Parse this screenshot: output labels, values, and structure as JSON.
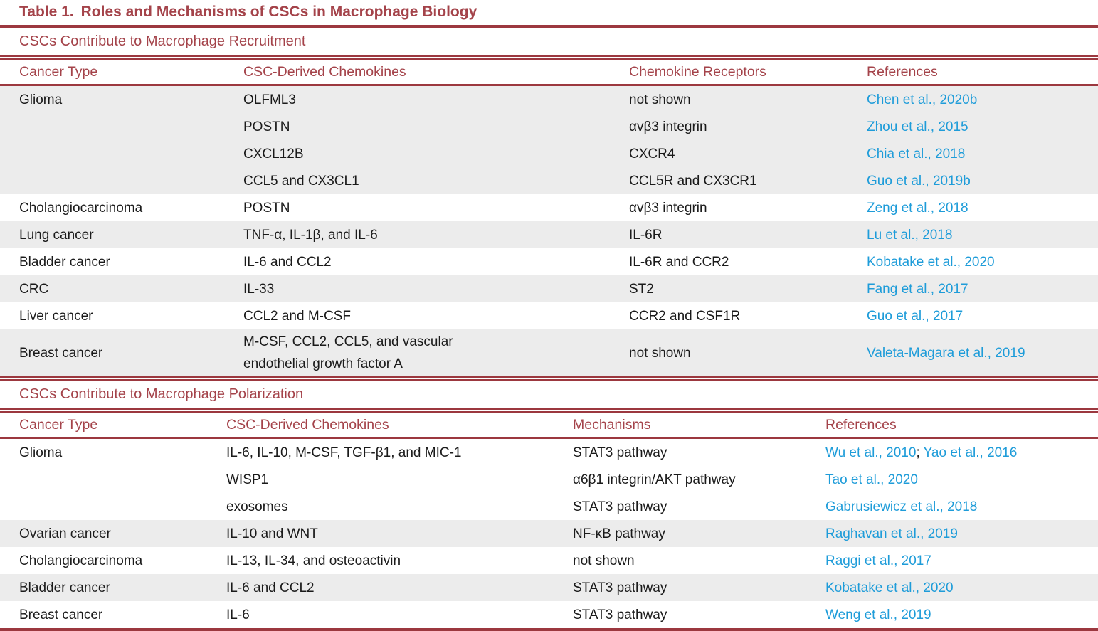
{
  "title": {
    "label": "Table 1.",
    "text": "Roles and Mechanisms of CSCs in Macrophage Biology"
  },
  "colors": {
    "maroon": "#A4434A",
    "link_blue": "#1E9CD9",
    "stripe_gray": "#ECECEC"
  },
  "sections": [
    {
      "header": "CSCs Contribute to Macrophage Recruitment",
      "columns": [
        "Cancer Type",
        "CSC-Derived Chemokines",
        "Chemokine Receptors",
        "References"
      ],
      "rows": [
        {
          "cancer_type": "Glioma",
          "chemokines": "OLFML3",
          "col3": "not shown",
          "references": [
            "Chen et al., 2020b"
          ],
          "shade": "gray"
        },
        {
          "cancer_type": "",
          "chemokines": "POSTN",
          "col3": "αvβ3 integrin",
          "references": [
            "Zhou et al., 2015"
          ],
          "shade": "gray"
        },
        {
          "cancer_type": "",
          "chemokines": "CXCL12B",
          "col3": "CXCR4",
          "references": [
            "Chia et al., 2018"
          ],
          "shade": "gray"
        },
        {
          "cancer_type": "",
          "chemokines": "CCL5 and CX3CL1",
          "col3": "CCL5R and CX3CR1",
          "references": [
            "Guo et al., 2019b"
          ],
          "shade": "gray"
        },
        {
          "cancer_type": "Cholangiocarcinoma",
          "chemokines": "POSTN",
          "col3": "αvβ3 integrin",
          "references": [
            "Zeng et al., 2018"
          ],
          "shade": "white"
        },
        {
          "cancer_type": "Lung cancer",
          "chemokines": "TNF-α, IL-1β, and IL-6",
          "col3": "IL-6R",
          "references": [
            "Lu et al., 2018"
          ],
          "shade": "gray"
        },
        {
          "cancer_type": "Bladder cancer",
          "chemokines": "IL-6 and CCL2",
          "col3": "IL-6R and CCR2",
          "references": [
            "Kobatake et al., 2020"
          ],
          "shade": "white"
        },
        {
          "cancer_type": "CRC",
          "chemokines": "IL-33",
          "col3": "ST2",
          "references": [
            "Fang et al., 2017"
          ],
          "shade": "gray"
        },
        {
          "cancer_type": "Liver cancer",
          "chemokines": "CCL2 and M-CSF",
          "col3": "CCR2 and CSF1R",
          "references": [
            "Guo et al., 2017"
          ],
          "shade": "white"
        },
        {
          "cancer_type": "Breast cancer",
          "chemokines": "M-CSF, CCL2, CCL5, and vascular endothelial growth factor A",
          "col3": "not shown",
          "references": [
            "Valeta-Magara et al., 2019"
          ],
          "shade": "gray"
        }
      ]
    },
    {
      "header": "CSCs Contribute to Macrophage Polarization",
      "columns": [
        "Cancer Type",
        "CSC-Derived Chemokines",
        "Mechanisms",
        "References"
      ],
      "rows": [
        {
          "cancer_type": "Glioma",
          "chemokines": "IL-6, IL-10, M-CSF, TGF-β1, and MIC-1",
          "col3": "STAT3 pathway",
          "references": [
            "Wu et al., 2010",
            "Yao et al., 2016"
          ],
          "shade": "white"
        },
        {
          "cancer_type": "",
          "chemokines": "WISP1",
          "col3": "α6β1 integrin/AKT pathway",
          "references": [
            "Tao et al., 2020"
          ],
          "shade": "white"
        },
        {
          "cancer_type": "",
          "chemokines": "exosomes",
          "col3": "STAT3 pathway",
          "references": [
            "Gabrusiewicz et al., 2018"
          ],
          "shade": "white"
        },
        {
          "cancer_type": "Ovarian cancer",
          "chemokines": "IL-10 and WNT",
          "col3": "NF-κB pathway",
          "references": [
            "Raghavan et al., 2019"
          ],
          "shade": "gray"
        },
        {
          "cancer_type": "Cholangiocarcinoma",
          "chemokines": "IL-13, IL-34, and osteoactivin",
          "col3": "not shown",
          "references": [
            "Raggi et al., 2017"
          ],
          "shade": "white"
        },
        {
          "cancer_type": "Bladder cancer",
          "chemokines": "IL-6 and CCL2",
          "col3": "STAT3 pathway",
          "references": [
            "Kobatake et al., 2020"
          ],
          "shade": "gray"
        },
        {
          "cancer_type": "Breast cancer",
          "chemokines": "IL-6",
          "col3": "STAT3 pathway",
          "references": [
            "Weng et al., 2019"
          ],
          "shade": "white"
        }
      ]
    }
  ]
}
